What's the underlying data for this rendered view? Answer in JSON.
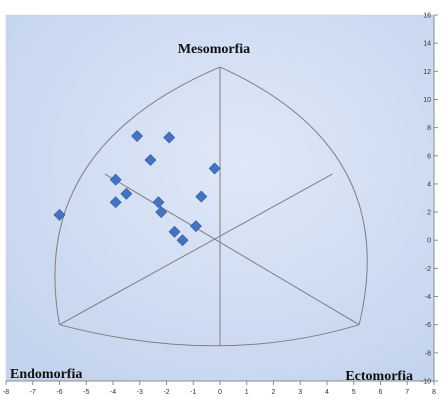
{
  "chart_data": {
    "type": "scatter",
    "title": "",
    "xlabel": "",
    "ylabel": "",
    "xlim": [
      -8,
      8
    ],
    "ylim": [
      -10,
      16
    ],
    "x_ticks": [
      -8,
      -7,
      -6,
      -5,
      -4,
      -3,
      -2,
      -1,
      0,
      1,
      2,
      3,
      4,
      5,
      6,
      7,
      8
    ],
    "y_ticks": [
      -10,
      -8,
      -6,
      -4,
      -2,
      0,
      2,
      4,
      6,
      8,
      10,
      12,
      14,
      16
    ],
    "grid": false,
    "legend": "none",
    "annotations": [
      {
        "id": "mesomorfia",
        "text": "Mesomorfia"
      },
      {
        "id": "endomorfia",
        "text": "Endomorfia"
      },
      {
        "id": "ectomorfia",
        "text": "Ectomorfia"
      }
    ],
    "series": [
      {
        "marker": "diamond",
        "color": "#4472c4",
        "points": [
          [
            -6.0,
            1.8
          ],
          [
            -3.9,
            4.3
          ],
          [
            -3.9,
            2.7
          ],
          [
            -3.5,
            3.3
          ],
          [
            -3.1,
            7.4
          ],
          [
            -2.6,
            5.7
          ],
          [
            -2.3,
            2.7
          ],
          [
            -2.2,
            2.0
          ],
          [
            -1.9,
            7.3
          ],
          [
            -1.7,
            0.6
          ],
          [
            -1.4,
            0.0
          ],
          [
            -0.9,
            1.0
          ],
          [
            -0.7,
            3.1
          ],
          [
            -0.2,
            5.1
          ]
        ]
      }
    ],
    "somatochart": {
      "top_vertex": [
        0,
        12.3
      ],
      "left_vertex": [
        -6,
        -6
      ],
      "right_vertex": [
        5.2,
        -6
      ],
      "center": [
        0,
        0
      ],
      "left_inner": [
        -4.3,
        4.7
      ],
      "right_inner": [
        4.2,
        4.7
      ],
      "bottom_arc_low": -7.5
    }
  },
  "colors": {
    "plot_background": "#c5d4ee",
    "plot_background_center": "#dfe8f8",
    "outline": "#7f7f7f",
    "marker": "#4472c4",
    "marker_edge": "#2f5597"
  }
}
